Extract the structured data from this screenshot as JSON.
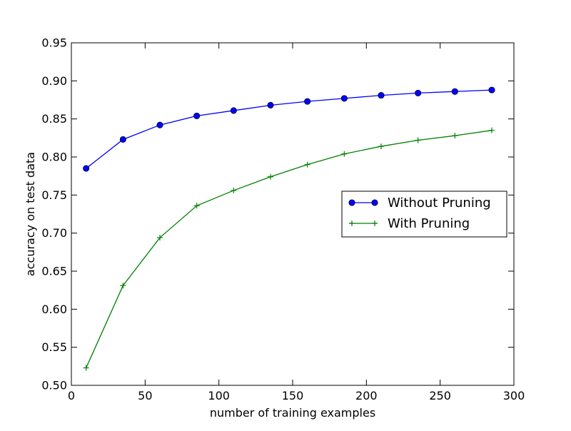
{
  "chart_data": {
    "type": "line",
    "title": "",
    "xlabel": "number of training examples",
    "ylabel": "accuracy on test data",
    "xlim": [
      0,
      300
    ],
    "ylim": [
      0.5,
      0.95
    ],
    "xticks": [
      0,
      50,
      100,
      150,
      200,
      250,
      300
    ],
    "xtick_labels": [
      "0",
      "50",
      "100",
      "150",
      "200",
      "250",
      "300"
    ],
    "yticks": [
      0.5,
      0.55,
      0.6,
      0.65,
      0.7,
      0.75,
      0.8,
      0.85,
      0.9,
      0.95
    ],
    "ytick_labels": [
      "0.50",
      "0.55",
      "0.60",
      "0.65",
      "0.70",
      "0.75",
      "0.80",
      "0.85",
      "0.90",
      "0.95"
    ],
    "grid": false,
    "legend_position": "center-right",
    "x": [
      10,
      35,
      60,
      85,
      110,
      135,
      160,
      185,
      210,
      235,
      260,
      285
    ],
    "series": [
      {
        "name": "Without Pruning",
        "color": "#0000ff",
        "marker": "circle",
        "values": [
          0.785,
          0.823,
          0.842,
          0.854,
          0.861,
          0.868,
          0.873,
          0.877,
          0.881,
          0.884,
          0.886,
          0.888
        ]
      },
      {
        "name": "With Pruning",
        "color": "#008000",
        "marker": "plus",
        "values": [
          0.523,
          0.631,
          0.694,
          0.736,
          0.756,
          0.774,
          0.79,
          0.804,
          0.814,
          0.822,
          0.828,
          0.835
        ]
      }
    ]
  }
}
